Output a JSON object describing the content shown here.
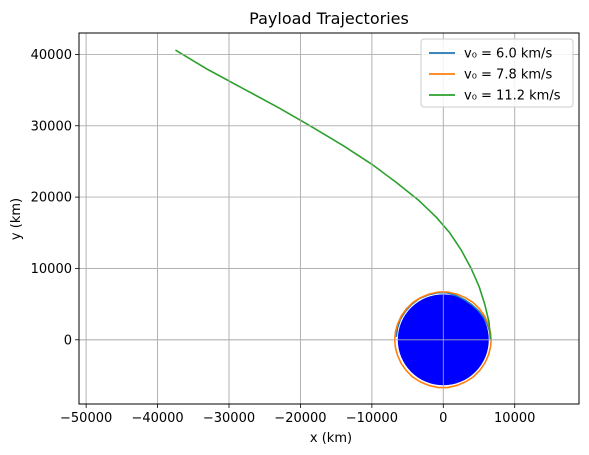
{
  "chart_data": {
    "type": "line",
    "title": "Payload Trajectories",
    "xlabel": "x (km)",
    "ylabel": "y (km)",
    "xlim": [
      -51000,
      19000
    ],
    "ylim": [
      -9000,
      43000
    ],
    "xticks": [
      -50000,
      -40000,
      -30000,
      -20000,
      -10000,
      0,
      10000
    ],
    "xtick_labels": [
      "−50000",
      "−40000",
      "−30000",
      "−20000",
      "−10000",
      "0",
      "10000"
    ],
    "yticks": [
      0,
      10000,
      20000,
      30000,
      40000
    ],
    "ytick_labels": [
      "0",
      "10000",
      "20000",
      "30000",
      "40000"
    ],
    "grid": true,
    "legend_position": "top-right",
    "earth": {
      "center": [
        0,
        0
      ],
      "radius": 6371,
      "color": "#0000ff"
    },
    "series": [
      {
        "name": "v₀ = 6.0 km/s",
        "color": "#1f77b4",
        "x": [
          6650,
          6600,
          6400,
          6100,
          5600,
          4900,
          4000,
          3000,
          1800,
          500,
          -800,
          -2100,
          -3300,
          -4400,
          -5300,
          -6000,
          -6400,
          -6600
        ],
        "y": [
          0,
          700,
          1500,
          2300,
          3200,
          4100,
          4900,
          5600,
          6200,
          6600,
          6600,
          6300,
          5800,
          5000,
          4000,
          2900,
          1700,
          400
        ]
      },
      {
        "name": "v₀ = 7.8 km/s",
        "color": "#ff7f0e",
        "x": [
          6700,
          6600,
          6300,
          5800,
          5100,
          4200,
          3100,
          1900,
          600,
          -700,
          -2000,
          -3200,
          -4300,
          -5200,
          -5900,
          -6400,
          -6700,
          -6800,
          -6700,
          -6400,
          -5900,
          -5200,
          -4300,
          -3200,
          -2000,
          -700,
          600,
          1900,
          3100,
          4200,
          5100,
          5800,
          6300,
          6600,
          6700
        ],
        "y": [
          0,
          1100,
          2200,
          3300,
          4300,
          5200,
          5900,
          6400,
          6700,
          6700,
          6400,
          5900,
          5200,
          4300,
          3300,
          2200,
          1100,
          0,
          -1100,
          -2200,
          -3300,
          -4300,
          -5200,
          -5900,
          -6400,
          -6700,
          -6700,
          -6400,
          -5900,
          -5200,
          -4300,
          -3300,
          -2200,
          -1100,
          0
        ]
      },
      {
        "name": "v₀ = 11.2 km/s",
        "color": "#2ca02c",
        "x": [
          6600,
          6400,
          5800,
          5000,
          3900,
          2500,
          900,
          -1000,
          -3500,
          -6500,
          -10000,
          -14000,
          -18500,
          -23000,
          -28000,
          -33000,
          -37500
        ],
        "y": [
          0,
          2500,
          5000,
          7500,
          10000,
          12600,
          15000,
          17200,
          19600,
          22000,
          24600,
          27200,
          29900,
          32500,
          35200,
          37900,
          40600
        ]
      }
    ]
  }
}
